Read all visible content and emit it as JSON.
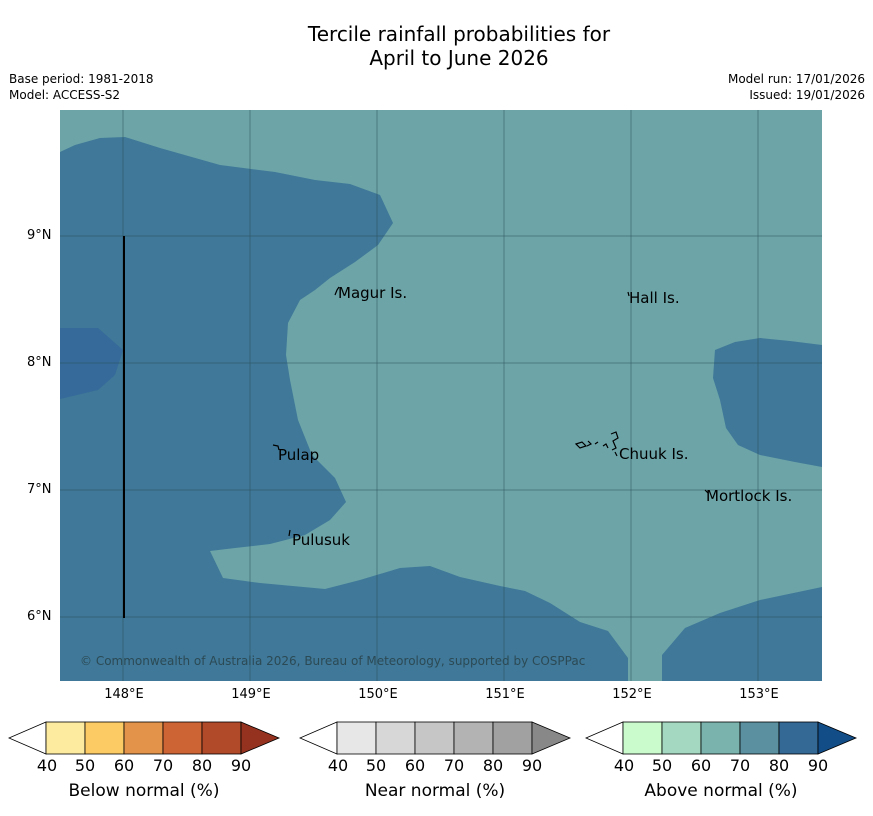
{
  "header": {
    "title_line1": "Tercile rainfall probabilities for",
    "title_line2": "April to June 2026",
    "base_period": "Base period: 1981-2018",
    "model": "Model: ACCESS-S2",
    "model_run": "Model run: 17/01/2026",
    "issued": "Issued: 19/01/2026"
  },
  "map": {
    "y_labels": [
      "9°N",
      "8°N",
      "7°N",
      "6°N"
    ],
    "x_labels": [
      "148°E",
      "149°E",
      "150°E",
      "151°E",
      "152°E",
      "153°E"
    ],
    "places": {
      "magur": "Magur Is.",
      "hall": "Hall Is.",
      "pulap": "Pulap",
      "chuuk": "Chuuk Is.",
      "mortlock": "Mortlock Is.",
      "pulusuk": "Pulusuk"
    },
    "copyright": "© Commonwealth of Australia 2026, Bureau of Meteorology, supported by COSPPac",
    "colors": {
      "above_70": "#6ca4a8",
      "above_80": "#3f7898",
      "above_90": "#356a9a"
    }
  },
  "colorbars": {
    "ticks": [
      "40",
      "50",
      "60",
      "70",
      "80",
      "90"
    ],
    "below": {
      "title": "Below normal (%)",
      "colors": [
        "#ffffff",
        "#fdeba0",
        "#fdcb63",
        "#e3944a",
        "#cd6434",
        "#b14a28",
        "#94321f"
      ]
    },
    "near": {
      "title": "Near normal (%)",
      "colors": [
        "#ffffff",
        "#e7e7e7",
        "#d7d7d7",
        "#c6c6c6",
        "#b3b3b3",
        "#a1a1a1",
        "#888888"
      ]
    },
    "above": {
      "title": "Above normal (%)",
      "colors": [
        "#ffffff",
        "#c9fbcd",
        "#a4d8c0",
        "#7ab3ae",
        "#5a90a0",
        "#346895",
        "#124d87"
      ]
    }
  }
}
